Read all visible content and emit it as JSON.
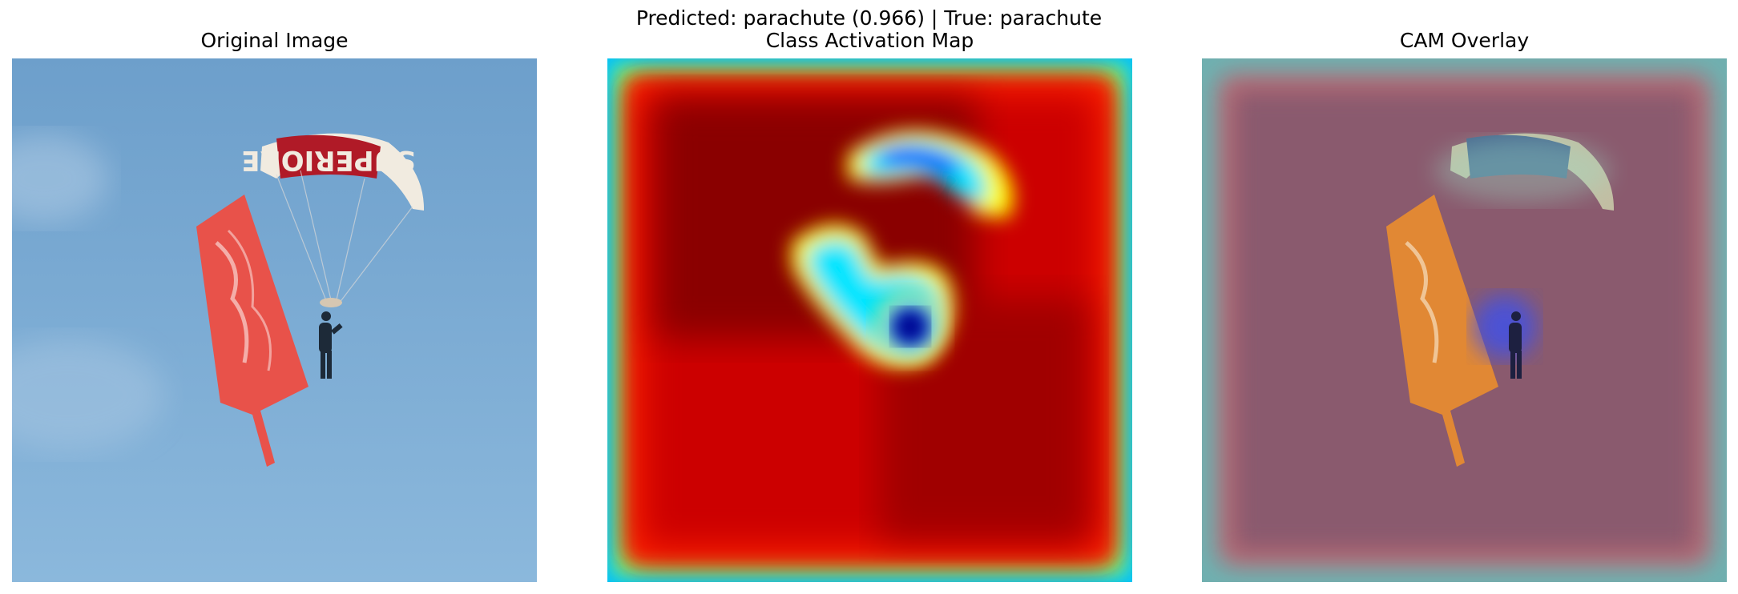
{
  "figure": {
    "suptitle": "Predicted: parachute (0.966) | True: parachute"
  },
  "panels": [
    {
      "title": "Original Image"
    },
    {
      "title": "Class Activation Map"
    },
    {
      "title": "CAM Overlay"
    }
  ],
  "image": {
    "canopy_text": "SUPERIORE",
    "colors": {
      "sky": "#7fb0d6",
      "canopy": "#f1ebe0",
      "canopy_band": "#b01a27",
      "banner": "#e8524a",
      "jumper": "#1d2a38"
    }
  },
  "cam": {
    "colormap": "jet",
    "colors": {
      "high": "#880000",
      "mid_high": "#ff2000",
      "mid": "#ffff00",
      "mid_low": "#00e5ff",
      "low": "#0000a0"
    }
  }
}
